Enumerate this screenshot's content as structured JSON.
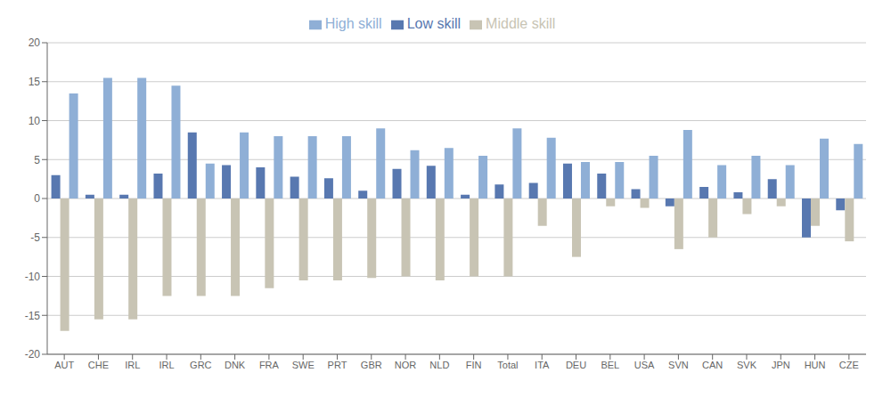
{
  "chart_data": {
    "type": "bar",
    "categories": [
      "AUT",
      "CHE",
      "IRL",
      "IRL",
      "GRC",
      "DNK",
      "FRA",
      "SWE",
      "PRT",
      "GBR",
      "NOR",
      "NLD",
      "FIN",
      "Total",
      "ITA",
      "DEU",
      "BEL",
      "USA",
      "SVN",
      "CAN",
      "SVK",
      "JPN",
      "HUN",
      "CZE"
    ],
    "series": [
      {
        "name": "Low skill",
        "color": "#5878b0",
        "values": [
          3.0,
          0.5,
          0.5,
          3.2,
          8.5,
          4.3,
          4.0,
          2.8,
          2.6,
          1.0,
          3.8,
          4.2,
          0.5,
          1.8,
          2.0,
          4.5,
          3.2,
          1.2,
          -1.0,
          1.5,
          0.8,
          2.5,
          -5.0,
          -1.5
        ]
      },
      {
        "name": "Middle skill",
        "color": "#c8c4b4",
        "values": [
          -17.0,
          -15.5,
          -15.5,
          -12.5,
          -12.5,
          -12.5,
          -11.5,
          -10.5,
          -10.5,
          -10.2,
          -10.0,
          -10.5,
          -10.0,
          -10.0,
          -3.5,
          -7.5,
          -1.0,
          -1.2,
          -6.5,
          -5.0,
          -2.0,
          -1.0,
          -3.5,
          -5.5
        ]
      },
      {
        "name": "High skill",
        "color": "#8fafd6",
        "values": [
          13.5,
          15.5,
          15.5,
          14.5,
          4.5,
          8.5,
          8.0,
          8.0,
          8.0,
          9.0,
          6.2,
          6.5,
          5.5,
          9.0,
          7.8,
          4.7,
          4.7,
          5.5,
          8.8,
          4.3,
          5.5,
          4.3,
          7.7,
          7.0
        ]
      }
    ],
    "ylim": [
      -20,
      20
    ],
    "yticks": [
      -20,
      -15,
      -10,
      -5,
      0,
      5,
      10,
      15,
      20
    ],
    "grid": true,
    "legend": "top"
  }
}
